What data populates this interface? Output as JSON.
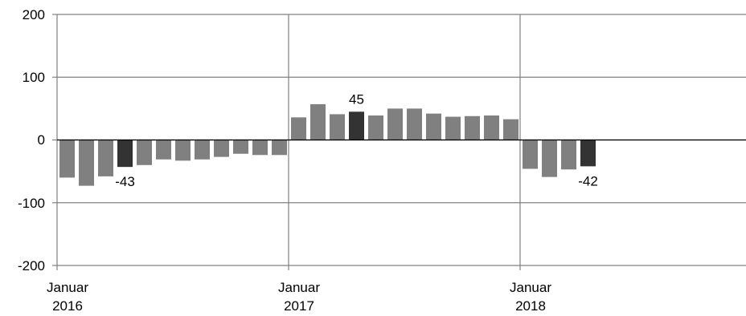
{
  "chart_data": {
    "type": "bar",
    "title": "",
    "xlabel": "",
    "ylabel": "",
    "ylim": [
      -200,
      200
    ],
    "yticks": [
      "200",
      "100",
      "0",
      "-100",
      "-200"
    ],
    "xticks": [
      {
        "line1": "Januar",
        "line2": "2016",
        "month_index": 0
      },
      {
        "line1": "Januar",
        "line2": "2017",
        "month_index": 12
      },
      {
        "line1": "Januar",
        "line2": "2018",
        "month_index": 24
      }
    ],
    "total_months": 36,
    "grid": "vertical lines at year starts, horizontal lines at y ticks",
    "colors": {
      "bar": "#808080",
      "highlight": "#333333",
      "grid": "#808080",
      "axis": "#000000"
    },
    "months": [
      "2016-01",
      "2016-02",
      "2016-03",
      "2016-04",
      "2016-05",
      "2016-06",
      "2016-07",
      "2016-08",
      "2016-09",
      "2016-10",
      "2016-11",
      "2016-12",
      "2017-01",
      "2017-02",
      "2017-03",
      "2017-04",
      "2017-05",
      "2017-06",
      "2017-07",
      "2017-08",
      "2017-09",
      "2017-10",
      "2017-11",
      "2017-12",
      "2018-01",
      "2018-02",
      "2018-03",
      "2018-04"
    ],
    "values": [
      -60,
      -73,
      -58,
      -43,
      -40,
      -31,
      -33,
      -31,
      -27,
      -22,
      -24,
      -24,
      36,
      57,
      41,
      45,
      39,
      50,
      50,
      42,
      37,
      38,
      39,
      33,
      -46,
      -59,
      -47,
      -42
    ],
    "highlight": [
      3,
      15,
      27
    ],
    "data_labels": [
      {
        "index": 3,
        "text": "-43"
      },
      {
        "index": 15,
        "text": "45"
      },
      {
        "index": 27,
        "text": "-42"
      }
    ]
  }
}
